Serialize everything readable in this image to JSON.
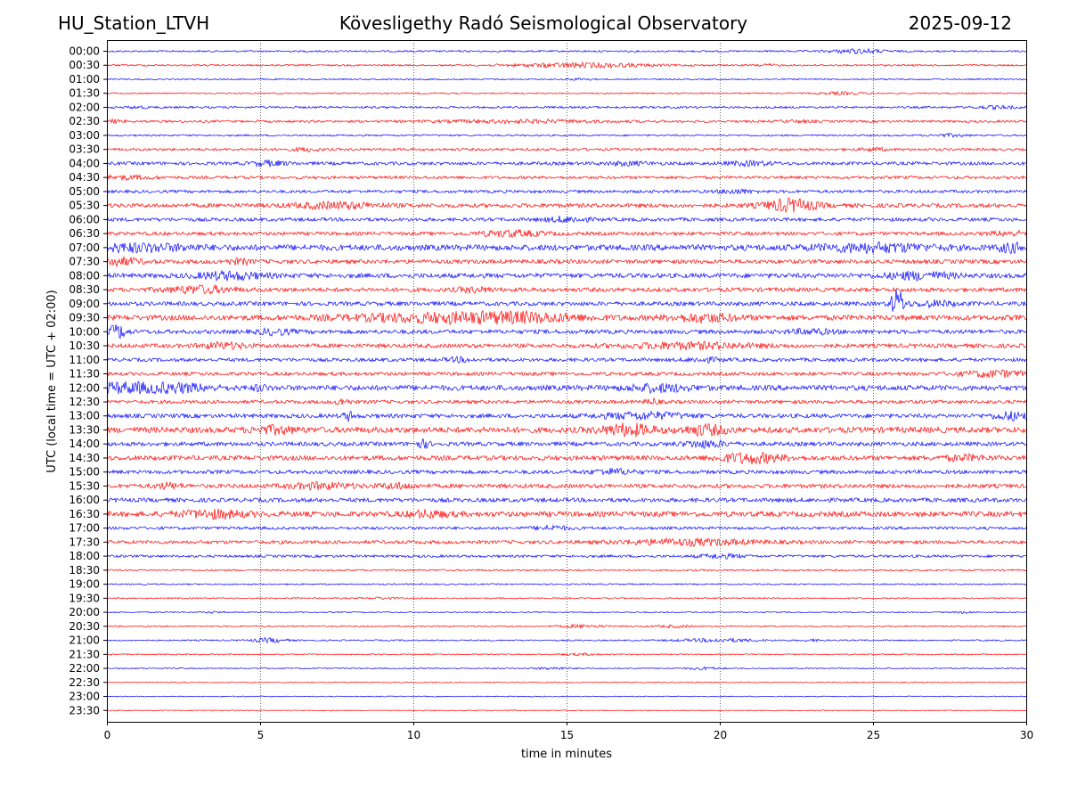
{
  "header": {
    "station": "HU_Station_LTVH",
    "title": "Kövesligethy Radó Seismological Observatory",
    "date": "2025-09-12"
  },
  "chart_data": {
    "type": "line",
    "title": "Kövesligethy Radó Seismological Observatory",
    "xlabel": "time in minutes",
    "ylabel": "UTC (local time = UTC + 02:00)",
    "xlim": [
      0,
      30
    ],
    "xticks": [
      0,
      5,
      10,
      15,
      20,
      25,
      30
    ],
    "vertical_gridlines_dotted": [
      5,
      10,
      15,
      20,
      25
    ],
    "colors": {
      "even_rows": "#0000ff",
      "odd_rows": "#ff0000"
    },
    "rows": [
      {
        "label": "00:00",
        "noise": 0.15,
        "events": [
          {
            "t": 24.5,
            "amp": 0.35,
            "w": 1.2
          }
        ]
      },
      {
        "label": "00:30",
        "noise": 0.15,
        "events": [
          {
            "t": 15.5,
            "amp": 0.35,
            "w": 3.0
          },
          {
            "t": 21.5,
            "amp": 0.15,
            "w": 0.5
          }
        ]
      },
      {
        "label": "01:00",
        "noise": 0.12,
        "events": [
          {
            "t": 15.5,
            "amp": 0.15,
            "w": 0.5
          }
        ]
      },
      {
        "label": "01:30",
        "noise": 0.12,
        "events": [
          {
            "t": 24.0,
            "amp": 0.2,
            "w": 1.0
          }
        ]
      },
      {
        "label": "02:00",
        "noise": 0.18,
        "events": [
          {
            "t": 1.0,
            "amp": 0.15,
            "w": 0.5
          },
          {
            "t": 29.0,
            "amp": 0.2,
            "w": 1.0
          }
        ]
      },
      {
        "label": "02:30",
        "noise": 0.2,
        "events": [
          {
            "t": 0.2,
            "amp": 0.2,
            "w": 0.5
          },
          {
            "t": 13.5,
            "amp": 0.2,
            "w": 4.0
          },
          {
            "t": 22.5,
            "amp": 0.15,
            "w": 0.8
          }
        ]
      },
      {
        "label": "03:00",
        "noise": 0.15,
        "events": [
          {
            "t": 27.5,
            "amp": 0.2,
            "w": 0.8
          }
        ]
      },
      {
        "label": "03:30",
        "noise": 0.22,
        "events": [
          {
            "t": 6.5,
            "amp": 0.25,
            "w": 0.6
          },
          {
            "t": 25.0,
            "amp": 0.2,
            "w": 0.6
          }
        ]
      },
      {
        "label": "04:00",
        "noise": 0.28,
        "events": [
          {
            "t": 5.3,
            "amp": 0.35,
            "w": 0.8
          },
          {
            "t": 17.0,
            "amp": 0.25,
            "w": 1.0
          },
          {
            "t": 21.0,
            "amp": 0.3,
            "w": 1.0
          }
        ]
      },
      {
        "label": "04:30",
        "noise": 0.25,
        "events": [
          {
            "t": 0.5,
            "amp": 0.25,
            "w": 1.5
          }
        ]
      },
      {
        "label": "05:00",
        "noise": 0.25,
        "events": [
          {
            "t": 20.5,
            "amp": 0.3,
            "w": 0.8
          }
        ]
      },
      {
        "label": "05:30",
        "noise": 0.35,
        "events": [
          {
            "t": 7.5,
            "amp": 0.45,
            "w": 2.0
          },
          {
            "t": 22.3,
            "amp": 1.0,
            "w": 1.2
          }
        ]
      },
      {
        "label": "06:00",
        "noise": 0.3,
        "events": [
          {
            "t": 15.0,
            "amp": 0.4,
            "w": 1.0
          }
        ]
      },
      {
        "label": "06:30",
        "noise": 0.3,
        "events": [
          {
            "t": 13.2,
            "amp": 0.45,
            "w": 1.5
          },
          {
            "t": 29.5,
            "amp": 0.3,
            "w": 1.0
          }
        ]
      },
      {
        "label": "07:00",
        "noise": 0.5,
        "events": [
          {
            "t": 1.0,
            "amp": 0.5,
            "w": 2.5
          },
          {
            "t": 25.0,
            "amp": 0.6,
            "w": 2.5
          },
          {
            "t": 29.5,
            "amp": 0.6,
            "w": 0.6
          }
        ]
      },
      {
        "label": "07:30",
        "noise": 0.35,
        "events": [
          {
            "t": 0.4,
            "amp": 0.6,
            "w": 1.0
          },
          {
            "t": 4.3,
            "amp": 0.35,
            "w": 0.6
          }
        ]
      },
      {
        "label": "08:00",
        "noise": 0.4,
        "events": [
          {
            "t": 4.0,
            "amp": 0.55,
            "w": 1.5
          },
          {
            "t": 26.5,
            "amp": 0.55,
            "w": 1.5
          }
        ]
      },
      {
        "label": "08:30",
        "noise": 0.35,
        "events": [
          {
            "t": 3.0,
            "amp": 0.55,
            "w": 1.5
          },
          {
            "t": 12.0,
            "amp": 0.35,
            "w": 0.8
          }
        ]
      },
      {
        "label": "09:00",
        "noise": 0.35,
        "events": [
          {
            "t": 25.8,
            "amp": 2.4,
            "w": 0.3
          },
          {
            "t": 27.0,
            "amp": 0.4,
            "w": 1.0
          }
        ]
      },
      {
        "label": "09:30",
        "noise": 0.45,
        "events": [
          {
            "t": 10.5,
            "amp": 0.55,
            "w": 4.0
          },
          {
            "t": 13.5,
            "amp": 0.6,
            "w": 3.0
          },
          {
            "t": 19.5,
            "amp": 0.55,
            "w": 1.5
          }
        ]
      },
      {
        "label": "10:00",
        "noise": 0.35,
        "events": [
          {
            "t": 0.35,
            "amp": 1.1,
            "w": 0.4
          },
          {
            "t": 5.5,
            "amp": 0.4,
            "w": 0.8
          },
          {
            "t": 23.0,
            "amp": 0.35,
            "w": 1.0
          }
        ]
      },
      {
        "label": "10:30",
        "noise": 0.35,
        "events": [
          {
            "t": 3.8,
            "amp": 0.45,
            "w": 1.0
          },
          {
            "t": 19.0,
            "amp": 0.45,
            "w": 3.0
          }
        ]
      },
      {
        "label": "11:00",
        "noise": 0.3,
        "events": [
          {
            "t": 11.5,
            "amp": 0.3,
            "w": 0.6
          },
          {
            "t": 19.5,
            "amp": 0.3,
            "w": 0.8
          }
        ]
      },
      {
        "label": "11:30",
        "noise": 0.3,
        "events": [
          {
            "t": 29.0,
            "amp": 0.5,
            "w": 1.5
          }
        ]
      },
      {
        "label": "12:00",
        "noise": 0.45,
        "events": [
          {
            "t": 0.5,
            "amp": 0.7,
            "w": 1.5
          },
          {
            "t": 2.3,
            "amp": 0.6,
            "w": 1.5
          },
          {
            "t": 18.0,
            "amp": 0.5,
            "w": 1.5
          },
          {
            "t": 5.0,
            "amp": 0.4,
            "w": 0.3
          }
        ]
      },
      {
        "label": "12:30",
        "noise": 0.3,
        "events": [
          {
            "t": 7.7,
            "amp": 0.5,
            "w": 0.3
          },
          {
            "t": 17.8,
            "amp": 0.45,
            "w": 0.3
          }
        ]
      },
      {
        "label": "13:00",
        "noise": 0.35,
        "events": [
          {
            "t": 7.9,
            "amp": 0.7,
            "w": 0.25
          },
          {
            "t": 17.5,
            "amp": 0.5,
            "w": 2.0
          },
          {
            "t": 29.5,
            "amp": 0.6,
            "w": 0.8
          }
        ]
      },
      {
        "label": "13:30",
        "noise": 0.5,
        "events": [
          {
            "t": 17.0,
            "amp": 0.85,
            "w": 1.2
          },
          {
            "t": 19.5,
            "amp": 0.7,
            "w": 1.0
          },
          {
            "t": 5.5,
            "amp": 0.5,
            "w": 1.0
          }
        ]
      },
      {
        "label": "14:00",
        "noise": 0.35,
        "events": [
          {
            "t": 10.3,
            "amp": 0.6,
            "w": 0.3
          },
          {
            "t": 19.5,
            "amp": 0.5,
            "w": 1.0
          }
        ]
      },
      {
        "label": "14:30",
        "noise": 0.4,
        "events": [
          {
            "t": 21.0,
            "amp": 0.75,
            "w": 1.5
          },
          {
            "t": 28.0,
            "amp": 0.35,
            "w": 1.0
          }
        ]
      },
      {
        "label": "15:00",
        "noise": 0.32,
        "events": [
          {
            "t": 16.5,
            "amp": 0.4,
            "w": 1.0
          }
        ]
      },
      {
        "label": "15:30",
        "noise": 0.35,
        "events": [
          {
            "t": 2.0,
            "amp": 0.4,
            "w": 0.6
          },
          {
            "t": 7.0,
            "amp": 0.45,
            "w": 1.5
          },
          {
            "t": 9.5,
            "amp": 0.4,
            "w": 0.8
          }
        ]
      },
      {
        "label": "16:00",
        "noise": 0.35,
        "events": []
      },
      {
        "label": "16:30",
        "noise": 0.45,
        "events": [
          {
            "t": 3.5,
            "amp": 0.55,
            "w": 1.5
          },
          {
            "t": 10.5,
            "amp": 0.45,
            "w": 1.0
          }
        ]
      },
      {
        "label": "17:00",
        "noise": 0.25,
        "events": [
          {
            "t": 14.5,
            "amp": 0.35,
            "w": 0.8
          }
        ]
      },
      {
        "label": "17:30",
        "noise": 0.3,
        "events": [
          {
            "t": 19.0,
            "amp": 0.45,
            "w": 3.0
          }
        ]
      },
      {
        "label": "18:00",
        "noise": 0.22,
        "events": [
          {
            "t": 20.0,
            "amp": 0.3,
            "w": 1.0
          }
        ]
      },
      {
        "label": "18:30",
        "noise": 0.15,
        "events": []
      },
      {
        "label": "19:00",
        "noise": 0.12,
        "events": []
      },
      {
        "label": "19:30",
        "noise": 0.12,
        "events": [
          {
            "t": 9.0,
            "amp": 0.15,
            "w": 0.6
          }
        ]
      },
      {
        "label": "20:00",
        "noise": 0.1,
        "events": [
          {
            "t": 3.5,
            "amp": 0.15,
            "w": 0.4
          },
          {
            "t": 28.0,
            "amp": 0.15,
            "w": 0.4
          }
        ]
      },
      {
        "label": "20:30",
        "noise": 0.12,
        "events": [
          {
            "t": 15.5,
            "amp": 0.25,
            "w": 1.0
          },
          {
            "t": 18.5,
            "amp": 0.2,
            "w": 0.8
          }
        ]
      },
      {
        "label": "21:00",
        "noise": 0.12,
        "events": [
          {
            "t": 5.3,
            "amp": 0.35,
            "w": 0.8
          },
          {
            "t": 20.0,
            "amp": 0.25,
            "w": 2.0
          },
          {
            "t": 23.0,
            "amp": 0.15,
            "w": 0.4
          }
        ]
      },
      {
        "label": "21:30",
        "noise": 0.1,
        "events": [
          {
            "t": 15.5,
            "amp": 0.15,
            "w": 1.0
          }
        ]
      },
      {
        "label": "22:00",
        "noise": 0.1,
        "events": [
          {
            "t": 14.5,
            "amp": 0.2,
            "w": 0.8
          },
          {
            "t": 19.5,
            "amp": 0.2,
            "w": 0.8
          }
        ]
      },
      {
        "label": "22:30",
        "noise": 0.08,
        "events": []
      },
      {
        "label": "23:00",
        "noise": 0.08,
        "events": []
      },
      {
        "label": "23:30",
        "noise": 0.08,
        "events": []
      }
    ]
  }
}
